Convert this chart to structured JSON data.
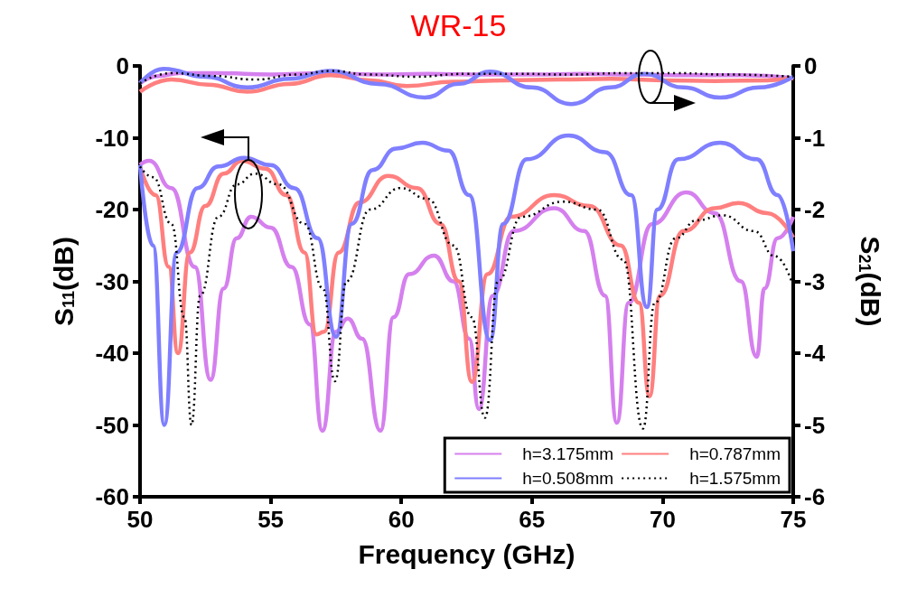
{
  "chart_data": {
    "type": "line",
    "title": "WR-15",
    "xlabel": "Frequency (GHz)",
    "ylabel": "S$_{11}$(dB)",
    "y2label": "S$_{21}$(dB)",
    "xlim": [
      50,
      75
    ],
    "xticks": [
      50,
      55,
      60,
      65,
      70,
      75
    ],
    "ylim": [
      -60,
      0
    ],
    "yticks": [
      -60,
      -50,
      -40,
      -30,
      -20,
      -10,
      0
    ],
    "y2lim": [
      -6,
      0
    ],
    "y2ticks": [
      -6,
      -5,
      -4,
      -3,
      -2,
      -1,
      0
    ],
    "grid": false,
    "legend": "bottom right",
    "marker": "none",
    "series": [
      {
        "name": "h=3.175mm",
        "color": "#d580ee",
        "line_style": "solid",
        "x": [
          50,
          50.35,
          51.2,
          52.1,
          52.7,
          53.2,
          53.7,
          54.25,
          55,
          55.8,
          56.5,
          56.98,
          57.5,
          57.95,
          58.5,
          59.2,
          59.7,
          60.3,
          61.25,
          62,
          62.6,
          62.97,
          63.5,
          64.3,
          65.85,
          67,
          67.8,
          68.25,
          68.7,
          69.6,
          70.9,
          72,
          73,
          73.6,
          73.9,
          74.4,
          75
        ],
        "values": [
          -13.8,
          -13.2,
          -17,
          -28,
          -43.7,
          -31,
          -24,
          -21,
          -22.5,
          -28,
          -36,
          -50.8,
          -37,
          -35.2,
          -38,
          -50.8,
          -35,
          -29,
          -26.4,
          -30,
          -38,
          -47.8,
          -32,
          -23,
          -19.8,
          -23,
          -32,
          -49.7,
          -33,
          -22,
          -17.6,
          -20.5,
          -30,
          -40.5,
          -31,
          -24,
          -21
        ]
      },
      {
        "name": "h=0.787mm",
        "color": "#ff7f7f",
        "line_style": "solid",
        "x": [
          50,
          50.6,
          51.1,
          51.45,
          51.9,
          52.5,
          53.2,
          53.9,
          54.8,
          55.6,
          56.3,
          56.75,
          57.05,
          57.6,
          58.4,
          59.5,
          60.6,
          61.5,
          62.2,
          62.7,
          63.3,
          64.2,
          65.85,
          67.2,
          68.4,
          69.1,
          69.5,
          69.9,
          70.8,
          72,
          72.9,
          74,
          75
        ],
        "values": [
          -14,
          -18,
          -28,
          -40,
          -26,
          -19.5,
          -15,
          -13.2,
          -14.3,
          -18,
          -26,
          -37.4,
          -37,
          -26,
          -19,
          -15.3,
          -17,
          -22,
          -30,
          -44,
          -29,
          -21,
          -18,
          -19.5,
          -25,
          -33,
          -46,
          -32,
          -23,
          -19.8,
          -19.1,
          -20.5,
          -23.9
        ]
      },
      {
        "name": "h=0.508mm",
        "color": "#7f7fff",
        "line_style": "solid",
        "x": [
          50,
          50.5,
          50.93,
          51.4,
          52.2,
          53,
          53.98,
          55,
          55.9,
          56.8,
          57.5,
          58.1,
          58.9,
          59.8,
          60.8,
          61.8,
          62.6,
          63.4,
          63.9,
          64.8,
          66.4,
          67.8,
          68.8,
          69.4,
          69.8,
          70.6,
          72.2,
          73.6,
          74.4,
          75
        ],
        "values": [
          -13.8,
          -25,
          -50,
          -26,
          -17,
          -14,
          -12.8,
          -13.8,
          -17,
          -24,
          -37.7,
          -22,
          -14.5,
          -11.5,
          -10.7,
          -11.8,
          -18,
          -38.2,
          -22,
          -13,
          -9.7,
          -12,
          -18,
          -33.6,
          -20,
          -13,
          -10.7,
          -13,
          -18,
          -25.8
        ]
      },
      {
        "name": "h=1.575mm",
        "color": "#000000",
        "line_style": "dotted",
        "x": [
          50,
          50.5,
          51.2,
          51.7,
          51.97,
          52.3,
          53,
          53.7,
          54.4,
          55.3,
          56.3,
          57,
          57.46,
          57.9,
          58.8,
          59.97,
          61,
          62,
          62.7,
          63.2,
          63.7,
          64.6,
          66.2,
          67.5,
          68.5,
          69.25,
          69.7,
          70.5,
          71.3,
          72.3,
          73.5,
          74.3,
          75
        ],
        "values": [
          -14,
          -15.5,
          -22,
          -35,
          -50,
          -32,
          -21,
          -16.5,
          -15,
          -16.5,
          -22,
          -31,
          -43.9,
          -30,
          -20,
          -17,
          -18.5,
          -25,
          -35,
          -49,
          -30,
          -21,
          -18.9,
          -20,
          -27,
          -50.5,
          -33,
          -24,
          -21.5,
          -20.8,
          -23,
          -26.5,
          -30.7
        ]
      },
      {
        "color": "#d580ee",
        "line_style": "solid",
        "axis": "y2",
        "x": [
          50,
          50.7,
          51.5,
          53,
          55,
          57,
          59,
          61,
          63,
          65,
          67,
          69,
          71,
          73,
          75
        ],
        "values": [
          -0.24,
          -0.14,
          -0.1,
          -0.1,
          -0.12,
          -0.1,
          -0.12,
          -0.11,
          -0.12,
          -0.12,
          -0.11,
          -0.12,
          -0.13,
          -0.13,
          -0.17
        ]
      },
      {
        "color": "#ff7f7f",
        "line_style": "solid",
        "axis": "y2",
        "x": [
          50,
          51.2,
          52.6,
          54.1,
          55.7,
          57.3,
          58.8,
          60.2,
          62,
          64,
          66,
          68,
          70,
          72,
          74,
          75
        ],
        "values": [
          -0.36,
          -0.19,
          -0.26,
          -0.36,
          -0.25,
          -0.13,
          -0.2,
          -0.28,
          -0.22,
          -0.2,
          -0.19,
          -0.18,
          -0.2,
          -0.21,
          -0.2,
          -0.17
        ]
      },
      {
        "color": "#7f7fff",
        "line_style": "solid",
        "axis": "y2",
        "x": [
          50,
          50.9,
          52.5,
          54.1,
          55.7,
          57.3,
          59.1,
          60.9,
          62.2,
          63.4,
          65,
          66.5,
          68,
          69.3,
          70.8,
          72.2,
          73.7,
          75
        ],
        "values": [
          -0.24,
          -0.04,
          -0.15,
          -0.3,
          -0.18,
          -0.07,
          -0.25,
          -0.44,
          -0.25,
          -0.08,
          -0.3,
          -0.53,
          -0.3,
          -0.11,
          -0.3,
          -0.44,
          -0.3,
          -0.15
        ]
      },
      {
        "color": "#000000",
        "line_style": "dotted",
        "axis": "y2",
        "x": [
          50,
          51.2,
          52.8,
          54.4,
          56,
          57.3,
          58.8,
          60.5,
          62.5,
          64.5,
          66.5,
          68.5,
          70.5,
          72.5,
          75
        ],
        "values": [
          -0.24,
          -0.1,
          -0.14,
          -0.19,
          -0.12,
          -0.07,
          -0.12,
          -0.15,
          -0.11,
          -0.11,
          -0.12,
          -0.1,
          -0.1,
          -0.12,
          -0.15
        ]
      }
    ]
  }
}
